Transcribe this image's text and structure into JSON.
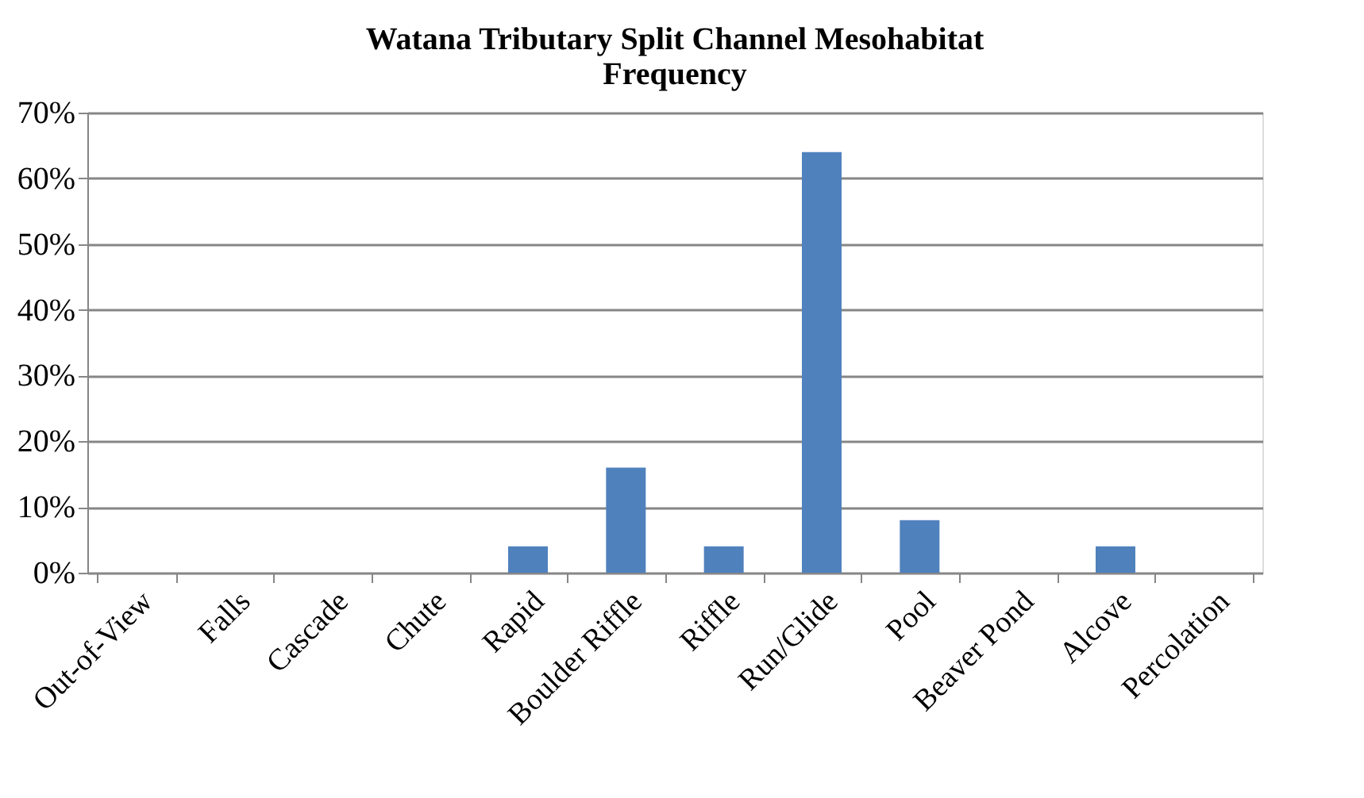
{
  "chart_data": {
    "type": "bar",
    "title": [
      "Watana Tributary  Split Channel Mesohabitat",
      "Frequency"
    ],
    "categories": [
      "Out-of-View",
      "Falls",
      "Cascade",
      "Chute",
      "Rapid",
      "Boulder Riffle",
      "Riffle",
      "Run/Glide",
      "Pool",
      "Beaver Pond",
      "Alcove",
      "Percolation"
    ],
    "values": [
      0,
      0,
      0,
      0,
      4,
      16,
      4,
      64,
      8,
      0,
      4,
      0
    ],
    "color": "#4f81bd",
    "ylim": [
      0,
      70
    ],
    "yticks": [
      {
        "value": 0,
        "label": "0%"
      },
      {
        "value": 10,
        "label": "10%"
      },
      {
        "value": 20,
        "label": "20%"
      },
      {
        "value": 30,
        "label": "30%"
      },
      {
        "value": 40,
        "label": "40%"
      },
      {
        "value": 50,
        "label": "50%"
      },
      {
        "value": 60,
        "label": "60%"
      },
      {
        "value": 70,
        "label": "70%"
      }
    ],
    "grid": "y"
  }
}
